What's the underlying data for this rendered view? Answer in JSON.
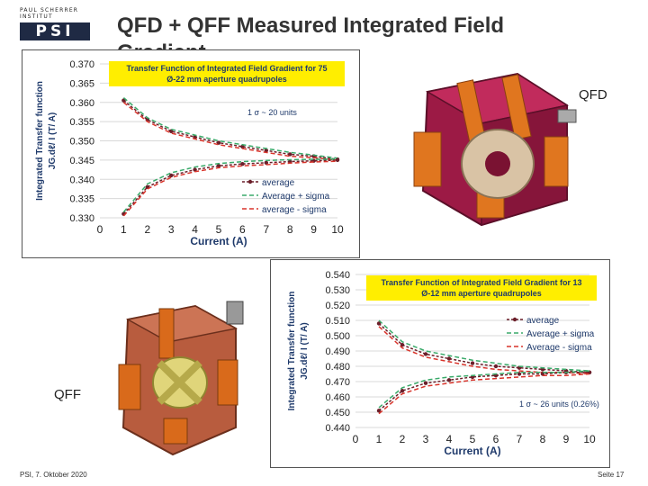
{
  "logo": {
    "institute": "PAUL SCHERRER INSTITUT",
    "mark": "PSI"
  },
  "slide_title": "QFD + QFF Measured Integrated Field Gradient",
  "labels": {
    "qfd": "QFD",
    "qff": "QFF"
  },
  "footer": {
    "left": "PSI, 7. Oktober 2020",
    "right": "Seite 17"
  },
  "colors": {
    "average": "#6b1f2a",
    "plus_sigma": "#3aaa6a",
    "minus_sigma": "#d9342b",
    "title_box": "#ffee00"
  },
  "chart_data": [
    {
      "type": "line",
      "title": "Transfer Function of Integrated Field Gradient for 75 Ø-22 mm aperture quadrupoles",
      "title_lines": [
        "Transfer Function of Integrated Field Gradient for 75",
        "Ø-22 mm aperture quadrupoles"
      ],
      "xlabel": "Current (A)",
      "ylabel_lines": [
        "Integrated Transfer function",
        "JG.dℓ/ I  (T/ A)"
      ],
      "annotation": "1 σ ~ 20 units",
      "xlim": [
        0,
        10
      ],
      "ylim": [
        0.33,
        0.37
      ],
      "x_ticks": [
        "0",
        "1",
        "2",
        "3",
        "4",
        "5",
        "6",
        "7",
        "8",
        "9",
        "10"
      ],
      "y_ticks": [
        "0.330",
        "0.335",
        "0.340",
        "0.345",
        "0.350",
        "0.355",
        "0.360",
        "0.365",
        "0.370"
      ],
      "x": [
        1,
        2,
        3,
        4,
        5,
        6,
        7,
        8,
        9,
        10
      ],
      "series": [
        {
          "name": "average",
          "group": "upper",
          "values": [
            0.3605,
            0.3555,
            0.3525,
            0.351,
            0.3495,
            0.3485,
            0.3475,
            0.3465,
            0.346,
            0.3452
          ]
        },
        {
          "name": "Average + sigma",
          "group": "upper",
          "values": [
            0.3612,
            0.356,
            0.353,
            0.3515,
            0.35,
            0.349,
            0.348,
            0.347,
            0.3463,
            0.3455
          ]
        },
        {
          "name": "average - sigma",
          "group": "upper",
          "values": [
            0.36,
            0.355,
            0.352,
            0.3505,
            0.349,
            0.348,
            0.347,
            0.346,
            0.3456,
            0.345
          ]
        },
        {
          "name": "average",
          "group": "lower",
          "values": [
            0.331,
            0.338,
            0.341,
            0.3425,
            0.3435,
            0.344,
            0.3443,
            0.3446,
            0.3448,
            0.345
          ]
        },
        {
          "name": "Average + sigma",
          "group": "lower",
          "values": [
            0.3315,
            0.3388,
            0.3417,
            0.3432,
            0.3441,
            0.3446,
            0.3449,
            0.3451,
            0.3452,
            0.3453
          ]
        },
        {
          "name": "average - sigma",
          "group": "lower",
          "values": [
            0.3305,
            0.3375,
            0.3405,
            0.342,
            0.343,
            0.3435,
            0.3438,
            0.3442,
            0.3445,
            0.3447
          ]
        }
      ],
      "legend": [
        "average",
        "Average + sigma",
        "average - sigma"
      ],
      "legend_position": "bottom-right"
    },
    {
      "type": "line",
      "title": "Transfer Function of Integrated Field Gradient for 13 Ø-12 mm aperture quadrupoles",
      "title_lines": [
        "Transfer Function of Integrated Field Gradient for 13",
        "Ø-12 mm aperture quadrupoles"
      ],
      "xlabel": "Current (A)",
      "ylabel_lines": [
        "Integrated Transfer function",
        "JG.dℓ/ I  (T/ A)"
      ],
      "annotation": "1 σ ~ 26 units (0.26%)",
      "xlim": [
        0,
        10
      ],
      "ylim": [
        0.44,
        0.54
      ],
      "x_ticks": [
        "0",
        "1",
        "2",
        "3",
        "4",
        "5",
        "6",
        "7",
        "8",
        "9",
        "10"
      ],
      "y_ticks": [
        "0.440",
        "0.450",
        "0.460",
        "0.470",
        "0.480",
        "0.490",
        "0.500",
        "0.510",
        "0.520",
        "0.530",
        "0.540"
      ],
      "x": [
        1,
        2,
        3,
        4,
        5,
        6,
        7,
        8,
        9,
        10
      ],
      "series": [
        {
          "name": "average",
          "group": "upper",
          "values": [
            0.508,
            0.494,
            0.488,
            0.485,
            0.482,
            0.48,
            0.479,
            0.478,
            0.477,
            0.476
          ]
        },
        {
          "name": "Average + sigma",
          "group": "upper",
          "values": [
            0.51,
            0.496,
            0.49,
            0.487,
            0.484,
            0.482,
            0.48,
            0.479,
            0.478,
            0.477
          ]
        },
        {
          "name": "Average -  sigma",
          "group": "upper",
          "values": [
            0.506,
            0.492,
            0.486,
            0.483,
            0.48,
            0.478,
            0.477,
            0.476,
            0.476,
            0.475
          ]
        },
        {
          "name": "average",
          "group": "lower",
          "values": [
            0.451,
            0.464,
            0.469,
            0.471,
            0.473,
            0.474,
            0.475,
            0.475,
            0.476,
            0.476
          ]
        },
        {
          "name": "Average + sigma",
          "group": "lower",
          "values": [
            0.453,
            0.466,
            0.471,
            0.473,
            0.474,
            0.475,
            0.476,
            0.476,
            0.476,
            0.477
          ]
        },
        {
          "name": "Average -  sigma",
          "group": "lower",
          "values": [
            0.449,
            0.462,
            0.467,
            0.469,
            0.471,
            0.472,
            0.473,
            0.474,
            0.474,
            0.475
          ]
        }
      ],
      "legend": [
        "average",
        "Average + sigma",
        "Average -  sigma"
      ],
      "legend_position": "top-right"
    }
  ]
}
